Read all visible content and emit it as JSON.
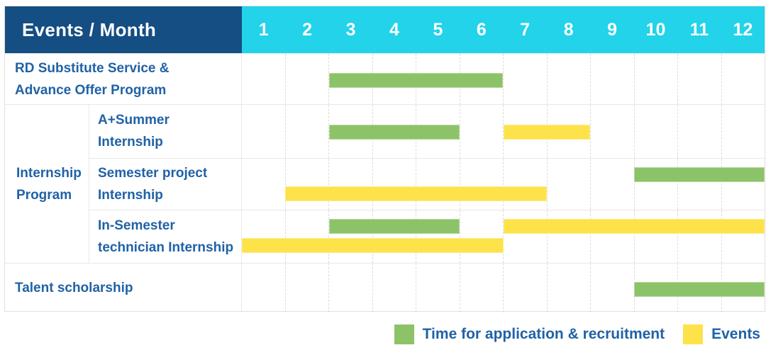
{
  "header": {
    "title": "Events / Month",
    "months": [
      "1",
      "2",
      "3",
      "4",
      "5",
      "6",
      "7",
      "8",
      "9",
      "10",
      "11",
      "12"
    ]
  },
  "colors": {
    "header_bg": "#144E82",
    "months_bg": "#22D3EA",
    "label_text": "#2062A6",
    "application_green": "#8CC368",
    "events_yellow": "#FEE24A"
  },
  "legend": [
    {
      "key": "application",
      "label": "Time for application & recruitment",
      "color": "#8CC368"
    },
    {
      "key": "events",
      "label": "Events",
      "color": "#FEE24A"
    }
  ],
  "chart_data": {
    "type": "gantt",
    "x_unit": "month",
    "x_ticks": [
      1,
      2,
      3,
      4,
      5,
      6,
      7,
      8,
      9,
      10,
      11,
      12
    ],
    "legend_series": {
      "application": "Time for application & recruitment",
      "events": "Events"
    },
    "groups": [
      {
        "label": "Internship\nProgram",
        "row_indexes": [
          1,
          2,
          3
        ]
      }
    ],
    "rows": [
      {
        "label": "RD Substitute Service &\nAdvance Offer Program",
        "lines": [
          [
            {
              "series": "application",
              "start_month": 3,
              "end_month": 6
            }
          ]
        ]
      },
      {
        "label": "A+Summer\nInternship",
        "group": "Internship Program",
        "lines": [
          [
            {
              "series": "application",
              "start_month": 3,
              "end_month": 5
            },
            {
              "series": "events",
              "start_month": 7,
              "end_month": 8
            }
          ]
        ]
      },
      {
        "label": "Semester project\nInternship",
        "group": "Internship Program",
        "lines": [
          [
            {
              "series": "application",
              "start_month": 10,
              "end_month": 12
            }
          ],
          [
            {
              "series": "events",
              "start_month": 2,
              "end_month": 7
            }
          ]
        ]
      },
      {
        "label": "In-Semester\ntechnician Internship",
        "group": "Internship Program",
        "lines": [
          [
            {
              "series": "application",
              "start_month": 3,
              "end_month": 5
            },
            {
              "series": "events",
              "start_month": 7,
              "end_month": 12
            }
          ],
          [
            {
              "series": "events",
              "start_month": 1,
              "end_month": 6
            }
          ]
        ]
      },
      {
        "label": "Talent scholarship",
        "lines": [
          [
            {
              "series": "application",
              "start_month": 10,
              "end_month": 12
            }
          ]
        ]
      }
    ]
  }
}
